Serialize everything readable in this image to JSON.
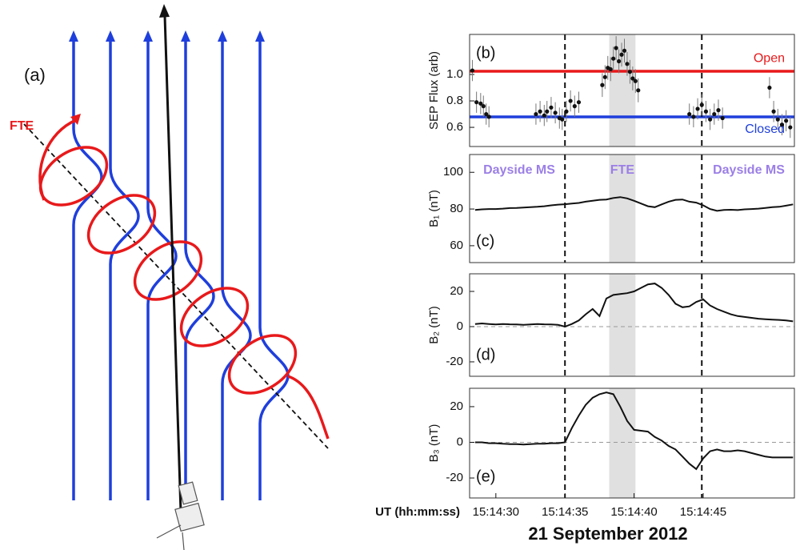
{
  "diagram": {
    "panel_label": "(a)",
    "fte_label": "FTE"
  },
  "chart_data": [
    {
      "type": "scatter",
      "panel_label": "(b)",
      "ylabel": "SEP Flux (arb)",
      "color": "#111111",
      "x": [
        28.3,
        28.6,
        28.9,
        29.1,
        29.3,
        29.5,
        32.9,
        33.2,
        33.5,
        33.7,
        34.0,
        34.3,
        34.6,
        34.8,
        35.1,
        35.4,
        35.7,
        36.0,
        37.7,
        37.9,
        38.1,
        38.3,
        38.5,
        38.7,
        38.9,
        39.1,
        39.3,
        39.5,
        39.7,
        39.9,
        40.1,
        40.3,
        44.0,
        44.3,
        44.6,
        44.9,
        45.2,
        45.5,
        45.8,
        46.1,
        46.4,
        49.8,
        50.1,
        50.4,
        50.7,
        51.0,
        51.3
      ],
      "values": [
        1.03,
        0.79,
        0.78,
        0.76,
        0.7,
        0.68,
        0.7,
        0.72,
        0.69,
        0.72,
        0.75,
        0.71,
        0.67,
        0.66,
        0.72,
        0.8,
        0.76,
        0.79,
        0.92,
        0.98,
        1.05,
        1.04,
        1.12,
        1.2,
        1.1,
        1.15,
        1.18,
        1.08,
        1.02,
        0.97,
        0.95,
        0.88,
        0.7,
        0.68,
        0.74,
        0.77,
        0.72,
        0.66,
        0.7,
        0.73,
        0.67,
        0.9,
        0.72,
        0.66,
        0.62,
        0.65,
        0.6
      ],
      "errors": [
        0.08,
        0.08,
        0.08,
        0.08,
        0.08,
        0.08,
        0.08,
        0.08,
        0.08,
        0.08,
        0.08,
        0.08,
        0.08,
        0.08,
        0.08,
        0.08,
        0.08,
        0.08,
        0.09,
        0.09,
        0.09,
        0.09,
        0.09,
        0.09,
        0.09,
        0.09,
        0.09,
        0.09,
        0.09,
        0.09,
        0.09,
        0.09,
        0.08,
        0.08,
        0.08,
        0.08,
        0.08,
        0.08,
        0.08,
        0.08,
        0.08,
        0.08,
        0.08,
        0.08,
        0.08,
        0.08,
        0.08
      ],
      "hlines": [
        {
          "value": 1.024,
          "color": "#e8191b",
          "label": "Open"
        },
        {
          "value": 0.679,
          "color": "#1f3fdc",
          "label": "Closed"
        }
      ],
      "xlim": [
        28.1,
        51.6
      ],
      "ylim": [
        0.455,
        1.303
      ],
      "yticks": [
        0.6,
        0.8,
        {
          "value": 1,
          "label": "1.0"
        }
      ],
      "vlines": [
        35,
        44.9
      ],
      "shade": [
        38.2,
        40.1
      ]
    },
    {
      "type": "line",
      "panel_label": "(c)",
      "ylabel": "B₁ (nT)",
      "color": "#111111",
      "annotations": [
        "Dayside MS",
        "FTE",
        "Dayside MS"
      ],
      "annotation_color": "#9b7fe6",
      "x": [
        28.5,
        29,
        29.5,
        30,
        30.5,
        31,
        31.5,
        32,
        32.5,
        33,
        33.5,
        34,
        34.5,
        35,
        35.5,
        36,
        36.5,
        37,
        37.5,
        38,
        38.5,
        39,
        39.5,
        40,
        40.5,
        41,
        41.5,
        42,
        42.5,
        43,
        43.5,
        44,
        44.5,
        45,
        45.5,
        46,
        46.5,
        47,
        47.5,
        48,
        48.5,
        49,
        49.5,
        50,
        50.5,
        51,
        51.5
      ],
      "values": [
        79.5,
        79.8,
        80,
        80,
        80.2,
        80.5,
        80.6,
        80.8,
        81,
        81.2,
        81.5,
        82,
        82.4,
        82.6,
        83,
        83.3,
        84,
        84.5,
        85,
        85.2,
        86,
        86.5,
        85.8,
        84.5,
        83,
        81.5,
        81,
        82.5,
        84,
        85,
        85.2,
        84,
        83.5,
        82,
        80,
        79,
        79.5,
        79.6,
        79.4,
        79.8,
        80,
        80.2,
        80.6,
        81,
        81.2,
        81.8,
        82.5
      ],
      "xlim": [
        28.1,
        51.6
      ],
      "ylim": [
        50.8,
        109.7
      ],
      "yticks": [
        60,
        80,
        100
      ],
      "vlines": [
        35,
        44.9
      ],
      "shade": [
        38.2,
        40.1
      ]
    },
    {
      "type": "line",
      "panel_label": "(d)",
      "ylabel": "B₂ (nT)",
      "color": "#111111",
      "x": [
        28.5,
        29,
        29.5,
        30,
        30.5,
        31,
        31.5,
        32,
        32.5,
        33,
        33.5,
        34,
        34.5,
        35,
        35.5,
        36,
        36.5,
        37,
        37.5,
        38,
        38.5,
        39,
        39.5,
        40,
        40.5,
        41,
        41.5,
        42,
        42.5,
        43,
        43.5,
        44,
        44.5,
        45,
        45.5,
        46,
        46.5,
        47,
        47.5,
        48,
        48.5,
        49,
        49.5,
        50,
        50.5,
        51,
        51.5
      ],
      "values": [
        1.5,
        1.8,
        1.5,
        1.2,
        1.5,
        1.3,
        1.2,
        1,
        1.2,
        1.5,
        1.3,
        1.2,
        1,
        0,
        1.5,
        3.5,
        7,
        10,
        6,
        16,
        18,
        18.5,
        19,
        20,
        22,
        24,
        24.5,
        22,
        18,
        13,
        11,
        11.5,
        14,
        15.5,
        12,
        10,
        8.5,
        7,
        6,
        5.5,
        5,
        4.5,
        4.2,
        4,
        3.8,
        3.5,
        3
      ],
      "hlines": [
        0
      ],
      "xlim": [
        28.1,
        51.6
      ],
      "ylim": [
        -28.2,
        30
      ],
      "yticks": [
        -20,
        0,
        20
      ],
      "vlines": [
        35,
        44.9
      ],
      "shade": [
        38.2,
        40.1
      ]
    },
    {
      "type": "line",
      "panel_label": "(e)",
      "ylabel": "B₃ (nT)",
      "color": "#111111",
      "x": [
        28.5,
        29,
        29.5,
        30,
        30.5,
        31,
        31.5,
        32,
        32.5,
        33,
        33.5,
        34,
        34.5,
        35,
        35.5,
        36,
        36.5,
        37,
        37.5,
        38,
        38.5,
        39,
        39.5,
        40,
        40.5,
        41,
        41.5,
        42,
        42.5,
        43,
        43.5,
        44,
        44.5,
        45,
        45.5,
        46,
        46.5,
        47,
        47.5,
        48,
        48.5,
        49,
        49.5,
        50,
        50.5,
        51,
        51.5
      ],
      "values": [
        0,
        0,
        -0.5,
        -0.5,
        -0.8,
        -1,
        -1,
        -1.2,
        -1,
        -0.8,
        -0.8,
        -0.5,
        -0.5,
        0,
        8,
        15,
        21,
        25,
        27,
        28,
        27,
        20,
        12,
        7,
        6.5,
        6,
        3,
        1,
        -2,
        -4,
        -8,
        -12,
        -15,
        -9,
        -5,
        -4,
        -5,
        -5,
        -4.5,
        -5,
        -6,
        -7,
        -8,
        -8.5,
        -8.5,
        -8.5,
        -8.5
      ],
      "hlines": [
        0
      ],
      "xlim": [
        28.1,
        51.6
      ],
      "ylim": [
        -31.2,
        30.3
      ],
      "yticks": [
        -20,
        0,
        20
      ],
      "xticks": [
        {
          "value": 30,
          "label": "15:14:30"
        },
        {
          "value": 35,
          "label": "15:14:35"
        },
        {
          "value": 40,
          "label": "15:14:40"
        },
        {
          "value": 45,
          "label": "15:14:45"
        }
      ],
      "xlabel": "UT (hh:mm:ss)",
      "date": "21 September 2012",
      "vlines": [
        35,
        44.9
      ],
      "shade": [
        38.2,
        40.1
      ]
    }
  ]
}
